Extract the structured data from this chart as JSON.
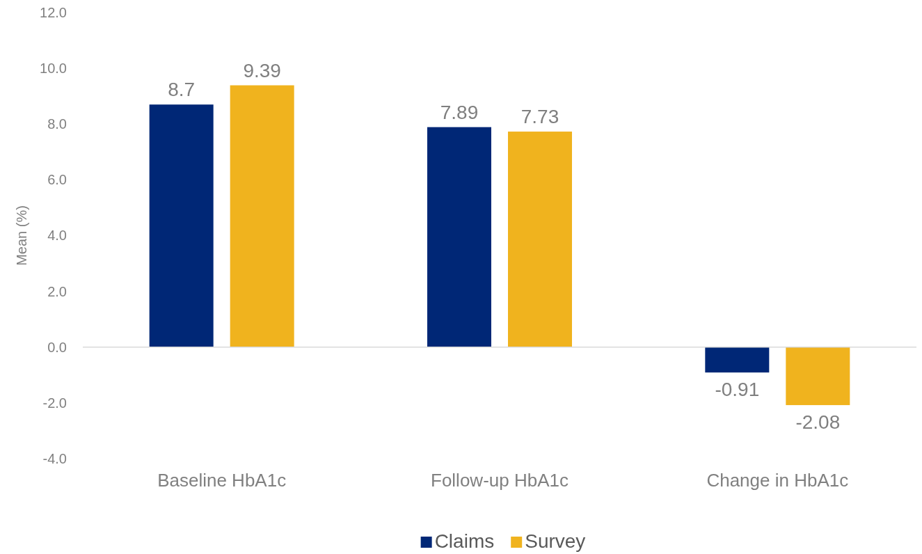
{
  "chart_data": {
    "type": "bar",
    "ylabel": "Mean (%)",
    "categories": [
      "Baseline HbA1c",
      "Follow-up HbA1c",
      "Change in HbA1c"
    ],
    "series": [
      {
        "name": "Claims",
        "color": "#002776",
        "values": [
          8.7,
          7.89,
          -0.91
        ]
      },
      {
        "name": "Survey",
        "color": "#f0b31e",
        "values": [
          9.39,
          7.73,
          -2.08
        ]
      }
    ],
    "ylim": [
      -4,
      12
    ],
    "yticks": [
      {
        "value": -4,
        "label": "-4.0"
      },
      {
        "value": -2,
        "label": "-2.0"
      },
      {
        "value": 0,
        "label": "0.0"
      },
      {
        "value": 2,
        "label": "2.0"
      },
      {
        "value": 4,
        "label": "4.0"
      },
      {
        "value": 6,
        "label": "6.0"
      },
      {
        "value": 8,
        "label": "8.0"
      },
      {
        "value": 10,
        "label": "10.0"
      },
      {
        "value": 12,
        "label": "12.0"
      }
    ],
    "ref_lines": [
      {
        "axis": "y",
        "value": 0,
        "color": "#d9d9d9"
      }
    ],
    "grid": false,
    "legend": "bottom",
    "data_labels": true
  }
}
